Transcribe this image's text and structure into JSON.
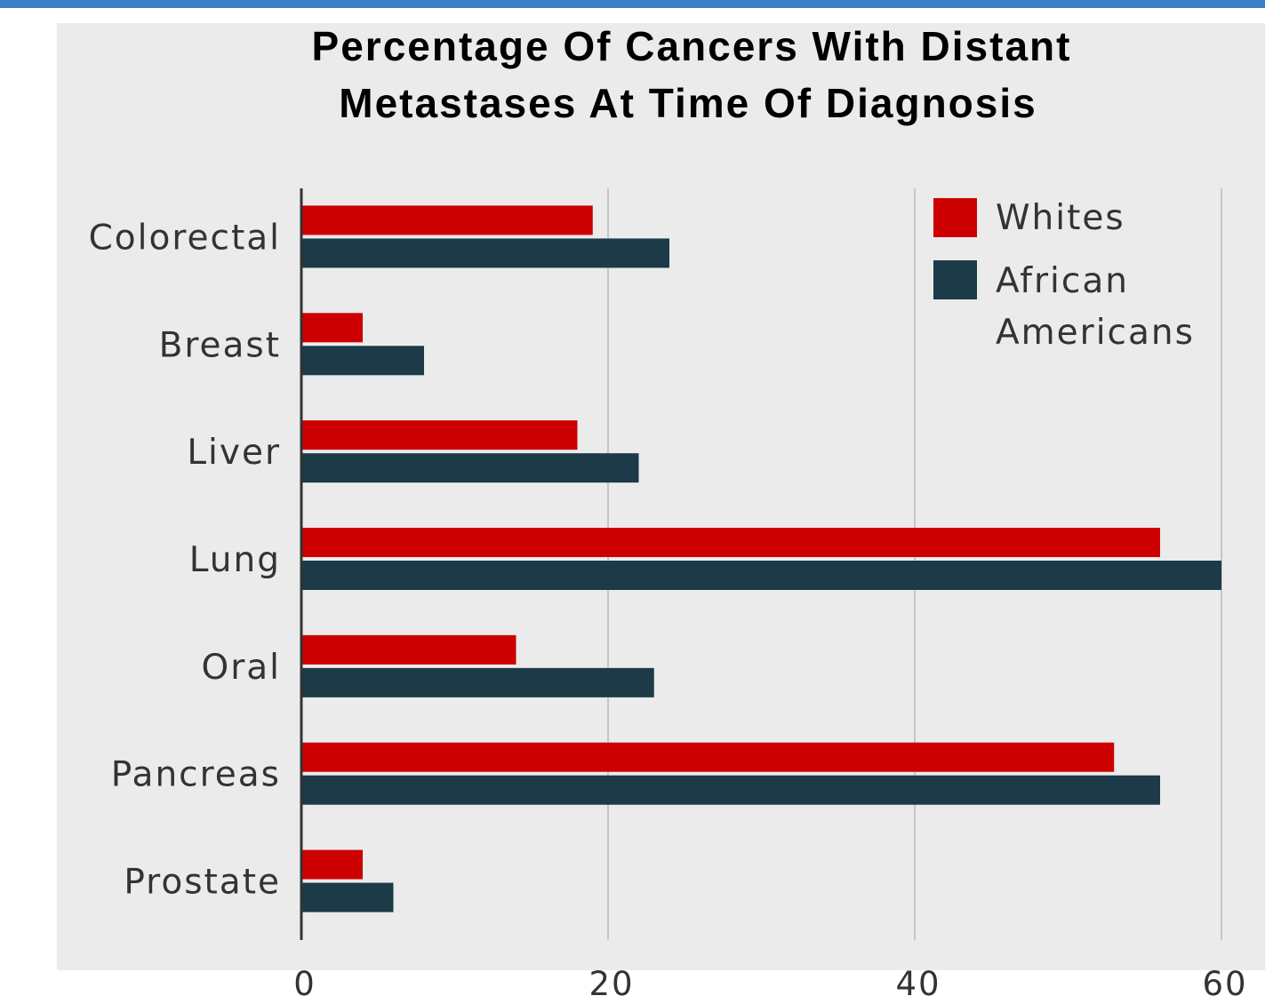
{
  "chart_data": {
    "type": "bar",
    "orientation": "horizontal",
    "title_lines": [
      "Percentage Of Cancers With Distant",
      "Metastases At Time Of Diagnosis"
    ],
    "categories": [
      "Colorectal",
      "Breast",
      "Liver",
      "Lung",
      "Oral",
      "Pancreas",
      "Prostate"
    ],
    "series": [
      {
        "name": "Whites",
        "color": "#cc0000",
        "values": [
          19,
          4,
          18,
          56,
          14,
          53,
          4
        ]
      },
      {
        "name_lines": [
          "African",
          "Americans"
        ],
        "color": "#1c3a47",
        "values": [
          24,
          8,
          22,
          60,
          23,
          56,
          6
        ]
      }
    ],
    "x_ticks": [
      "0",
      "20",
      "40",
      "60"
    ],
    "xlim": [
      0,
      60
    ],
    "grid": true,
    "legend_position": "top-right"
  }
}
